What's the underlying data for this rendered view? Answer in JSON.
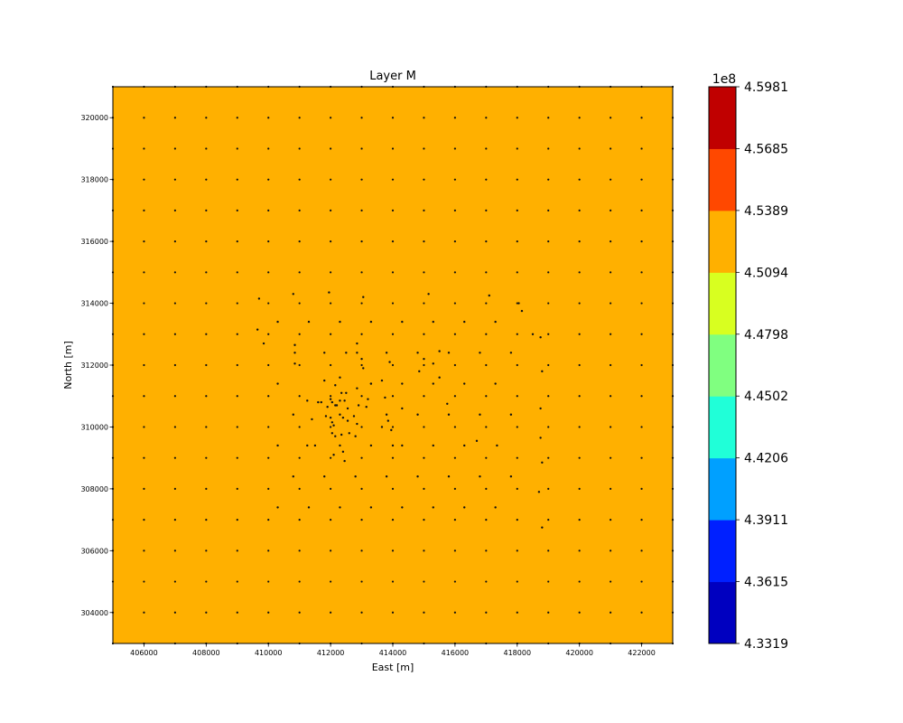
{
  "chart_data": {
    "type": "heatmap",
    "title": "Layer M",
    "xlabel": "East [m]",
    "ylabel": "North [m]",
    "xlim": [
      405000,
      423000
    ],
    "ylim": [
      303000,
      321000
    ],
    "x_ticks": [
      406000,
      408000,
      410000,
      412000,
      414000,
      416000,
      418000,
      420000,
      422000
    ],
    "y_ticks": [
      304000,
      306000,
      308000,
      310000,
      312000,
      314000,
      316000,
      318000,
      320000
    ],
    "field_color": "#ffb000",
    "field_value_range": [
      4.5094,
      4.5389
    ],
    "grid_points": {
      "x_start": 405000,
      "x_end": 423000,
      "x_step": 1000,
      "y_start": 303000,
      "y_end": 321000,
      "y_step": 1000
    },
    "points": [
      [
        409700,
        314150
      ],
      [
        410800,
        314300
      ],
      [
        411950,
        314350
      ],
      [
        413050,
        314200
      ],
      [
        415150,
        314300
      ],
      [
        417100,
        314250
      ],
      [
        418050,
        314000
      ],
      [
        418150,
        313750
      ],
      [
        409650,
        313150
      ],
      [
        409850,
        312700
      ],
      [
        410850,
        312650
      ],
      [
        410850,
        312400
      ],
      [
        410850,
        312050
      ],
      [
        411800,
        312400
      ],
      [
        412500,
        312400
      ],
      [
        412850,
        312700
      ],
      [
        412850,
        312400
      ],
      [
        413000,
        312200
      ],
      [
        413800,
        312400
      ],
      [
        413900,
        312100
      ],
      [
        414800,
        312400
      ],
      [
        415000,
        312200
      ],
      [
        415300,
        312050
      ],
      [
        415500,
        312450
      ],
      [
        415800,
        312400
      ],
      [
        416800,
        312400
      ],
      [
        417800,
        312400
      ],
      [
        418500,
        313000
      ],
      [
        418750,
        312900
      ],
      [
        418800,
        311800
      ],
      [
        414850,
        311800
      ],
      [
        415500,
        311600
      ],
      [
        412300,
        311600
      ],
      [
        413050,
        311900
      ],
      [
        411800,
        311500
      ],
      [
        413650,
        311500
      ],
      [
        413300,
        311400
      ],
      [
        412150,
        311350
      ],
      [
        412850,
        311250
      ],
      [
        411250,
        310850
      ],
      [
        411600,
        310800
      ],
      [
        411700,
        310800
      ],
      [
        411900,
        310650
      ],
      [
        412000,
        310900
      ],
      [
        412050,
        310800
      ],
      [
        412150,
        310700
      ],
      [
        412350,
        311100
      ],
      [
        412500,
        311100
      ],
      [
        412450,
        310850
      ],
      [
        412300,
        310850
      ],
      [
        412200,
        310700
      ],
      [
        412550,
        310600
      ],
      [
        412900,
        310700
      ],
      [
        413150,
        310650
      ],
      [
        413200,
        310900
      ],
      [
        413750,
        310950
      ],
      [
        414300,
        310600
      ],
      [
        414800,
        310400
      ],
      [
        415750,
        310750
      ],
      [
        415800,
        310400
      ],
      [
        416800,
        310400
      ],
      [
        417800,
        310400
      ],
      [
        418750,
        310600
      ],
      [
        410800,
        310400
      ],
      [
        411400,
        310250
      ],
      [
        411850,
        310350
      ],
      [
        412000,
        310300
      ],
      [
        412050,
        310150
      ],
      [
        412100,
        310050
      ],
      [
        412300,
        310400
      ],
      [
        412400,
        310300
      ],
      [
        412550,
        310200
      ],
      [
        412750,
        310350
      ],
      [
        412850,
        310100
      ],
      [
        413800,
        310400
      ],
      [
        413850,
        310200
      ],
      [
        413650,
        310000
      ],
      [
        413950,
        309900
      ],
      [
        412050,
        309800
      ],
      [
        412150,
        309700
      ],
      [
        412350,
        309750
      ],
      [
        412600,
        309800
      ],
      [
        412800,
        309700
      ],
      [
        410300,
        309400
      ],
      [
        411250,
        309400
      ],
      [
        411500,
        309400
      ],
      [
        412300,
        309400
      ],
      [
        412400,
        309200
      ],
      [
        412100,
        309100
      ],
      [
        412450,
        308900
      ],
      [
        413300,
        309400
      ],
      [
        414000,
        309400
      ],
      [
        414300,
        309400
      ],
      [
        415300,
        309400
      ],
      [
        416300,
        309400
      ],
      [
        416700,
        309550
      ],
      [
        417350,
        309400
      ],
      [
        418750,
        309650
      ],
      [
        418800,
        308850
      ],
      [
        418700,
        307900
      ],
      [
        418800,
        306750
      ],
      [
        410800,
        308400
      ],
      [
        411800,
        308400
      ],
      [
        412800,
        308400
      ],
      [
        413800,
        308400
      ],
      [
        414800,
        308400
      ],
      [
        415800,
        308400
      ],
      [
        416800,
        308400
      ],
      [
        417800,
        308400
      ],
      [
        410300,
        307400
      ],
      [
        411300,
        307400
      ],
      [
        412300,
        307400
      ],
      [
        413300,
        307400
      ],
      [
        414300,
        307400
      ],
      [
        415300,
        307400
      ],
      [
        416300,
        307400
      ],
      [
        417300,
        307400
      ],
      [
        410300,
        313400
      ],
      [
        411300,
        313400
      ],
      [
        412300,
        313400
      ],
      [
        413300,
        313400
      ],
      [
        414300,
        313400
      ],
      [
        415300,
        313400
      ],
      [
        416300,
        313400
      ],
      [
        417300,
        313400
      ],
      [
        410300,
        311400
      ],
      [
        413300,
        311400
      ],
      [
        414300,
        311400
      ],
      [
        415300,
        311400
      ],
      [
        416300,
        311400
      ],
      [
        417300,
        311400
      ]
    ],
    "colorbar": {
      "offset_label": "1e8",
      "levels": [
        "4.3319",
        "4.3615",
        "4.3911",
        "4.4206",
        "4.4502",
        "4.4798",
        "4.5094",
        "4.5389",
        "4.5685",
        "4.5981"
      ],
      "colors": [
        "#0000c0",
        "#0020ff",
        "#00a0ff",
        "#20ffd8",
        "#80ff80",
        "#d8ff20",
        "#ffb000",
        "#ff4800",
        "#c00000"
      ]
    }
  }
}
